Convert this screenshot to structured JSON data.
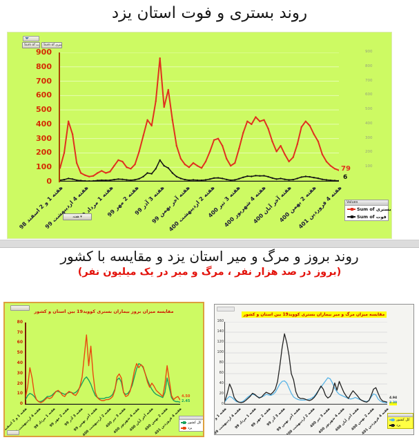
{
  "page": {
    "title1": "روند بستری و فوت استان یزد",
    "title2": "روند بروز و مرگ و میر استان یزد و مقایسه با کشور",
    "subtitle2": "(بروز در صد هزار نفر ، مرگ و میر در یک میلیون نفر)"
  },
  "colors": {
    "panel_green": "#cdfa63",
    "admissions_red": "#e0301e",
    "deaths_black": "#151515",
    "yazd_orange": "#e8470f",
    "country_green": "#19a15e",
    "yazd_dark": "#222222",
    "country_blue": "#58b4e6",
    "axis_label_red": "#d42b04",
    "title_red": "#e3120b",
    "highlight_yellow": "#ffff00"
  },
  "top_chart": {
    "field_buttons": [
      "Sum of فوت",
      "Sum of بستری"
    ],
    "axis_field_button": "هفته ▾",
    "legend": {
      "header": "Values",
      "items": [
        {
          "label": "Sum of بستری",
          "color": "#e0301e"
        },
        {
          "label": "Sum of فوت",
          "color": "#151515"
        }
      ]
    },
    "end_labels": {
      "admissions": "79",
      "deaths": "6"
    }
  },
  "bottom_left_chart": {
    "legend": {
      "items": [
        {
          "label": "کل کشور",
          "color": "#19a15e"
        },
        {
          "label": "یزد",
          "color": "#e8470f"
        }
      ]
    }
  },
  "bottom_right_chart": {
    "legend": {
      "items": [
        {
          "label": "کل کشور",
          "color": "#58b4e6"
        },
        {
          "label": "یزد",
          "color": "#222222"
        }
      ]
    }
  },
  "chart_data": [
    {
      "type": "line",
      "title": "روند بستری و فوت استان یزد",
      "xlabel": "هفته",
      "ylabel": "",
      "ylim": [
        0,
        900
      ],
      "yticks": [
        900,
        800,
        700,
        600,
        500,
        400,
        300,
        200,
        100,
        0
      ],
      "grid_color": "rgba(255,255,255,0.5)",
      "baseline_color": "#1a1a1a",
      "legend_position": "right-bottom",
      "categories": [
        "هفته 1 و 2 اسفند 98",
        "هفته 4 اردیبهشت 99",
        "هفته 1 مرداد 99",
        "هفته 2 مهر 99",
        "هفته 3 آذر 99",
        "هفته آخر بهمن 99",
        "هفته 2 اردیبهشت 400",
        "هفته 3 تیر 400",
        "هفته 4 شهریور 400",
        "هفته آخر آبان 400",
        "هفته 2 بهمن 400",
        "هفته 4 فروردین 401"
      ],
      "series": [
        {
          "name": "Sum of بستری",
          "slug": "admissions",
          "color": "#e0301e",
          "width": 2,
          "markers": true,
          "end_label": "79",
          "values": [
            95,
            200,
            420,
            330,
            130,
            60,
            45,
            35,
            40,
            60,
            75,
            60,
            70,
            110,
            150,
            140,
            100,
            90,
            120,
            210,
            320,
            430,
            390,
            560,
            860,
            520,
            640,
            430,
            250,
            160,
            120,
            100,
            130,
            110,
            95,
            140,
            210,
            290,
            300,
            250,
            160,
            110,
            130,
            230,
            340,
            420,
            400,
            450,
            420,
            430,
            370,
            280,
            210,
            250,
            190,
            140,
            170,
            260,
            380,
            420,
            390,
            330,
            280,
            190,
            140,
            110,
            90,
            79
          ]
        },
        {
          "name": "Sum of فوت",
          "slug": "deaths",
          "color": "#151515",
          "width": 1.6,
          "markers": true,
          "end_label": "6",
          "values": [
            10,
            14,
            22,
            18,
            10,
            7,
            5,
            4,
            5,
            8,
            10,
            9,
            10,
            14,
            18,
            16,
            12,
            10,
            13,
            20,
            35,
            60,
            55,
            90,
            150,
            110,
            95,
            60,
            35,
            22,
            14,
            10,
            12,
            10,
            9,
            12,
            18,
            25,
            26,
            22,
            15,
            10,
            12,
            20,
            30,
            38,
            36,
            42,
            40,
            41,
            34,
            25,
            18,
            22,
            16,
            12,
            14,
            22,
            32,
            36,
            33,
            28,
            23,
            16,
            12,
            9,
            7,
            6
          ]
        }
      ]
    },
    {
      "type": "line",
      "title": "مقایسه میزان بروز بیماران بستری کووید19 بین استان و کشور",
      "xlabel": "هفته",
      "ylabel": "",
      "ylim": [
        0,
        80
      ],
      "yticks": [
        80,
        70,
        60,
        50,
        40,
        30,
        20,
        10,
        0
      ],
      "grid_color": null,
      "baseline_color": "#1a1a1a",
      "legend_position": "right-bottom",
      "categories": [
        "هفته 1 و 2 اسفند 98",
        "هفته 4 اردیبهشت 99",
        "هفته 1 مرداد 99",
        "هفته 2 مهر 99",
        "هفته 3 آذر 99",
        "هفته آخر بهمن 99",
        "هفته 2 اردیبهشت 400",
        "هفته 3 تیر 400",
        "هفته 4 شهریور 400",
        "هفته آخر آبان 400",
        "هفته 2 بهمن 400",
        "هفته 4 فروردین 401"
      ],
      "series": [
        {
          "name": "کل کشور",
          "slug": "country",
          "color": "#19a15e",
          "width": 1.4,
          "markers": false,
          "end_label": "2.45",
          "values": [
            5,
            9,
            11,
            10,
            8,
            5,
            3,
            3,
            4,
            6,
            8,
            8,
            9,
            11,
            13,
            13,
            12,
            11,
            10,
            11,
            12,
            12,
            11,
            12,
            14,
            17,
            21,
            25,
            27,
            24,
            20,
            14,
            9,
            7,
            6,
            6,
            6,
            7,
            7,
            8,
            10,
            15,
            24,
            26,
            22,
            12,
            10,
            11,
            14,
            19,
            27,
            35,
            40,
            39,
            36,
            30,
            24,
            19,
            15,
            12,
            10,
            9,
            8,
            7,
            12,
            26,
            17,
            7,
            4,
            3,
            3,
            2.45
          ]
        },
        {
          "name": "یزد",
          "slug": "yazd",
          "color": "#e8470f",
          "width": 1.4,
          "markers": false,
          "end_label": "4.50",
          "values": [
            7,
            18,
            36,
            26,
            11,
            5,
            3,
            2,
            3,
            5,
            7,
            6,
            7,
            10,
            13,
            14,
            12,
            9,
            8,
            11,
            13,
            12,
            10,
            9,
            12,
            18,
            27,
            48,
            68,
            38,
            57,
            30,
            12,
            7,
            5,
            4,
            4,
            5,
            5,
            6,
            8,
            14,
            27,
            30,
            26,
            12,
            8,
            9,
            13,
            22,
            33,
            40,
            36,
            39,
            37,
            30,
            22,
            17,
            21,
            18,
            14,
            12,
            10,
            8,
            20,
            38,
            24,
            9,
            5,
            7,
            8,
            4.5
          ]
        }
      ]
    },
    {
      "type": "line",
      "title": "مقایسه میزان مرگ و میر بیماران بستری کووید19 بین استان و کشور",
      "xlabel": "هفته",
      "ylabel": "",
      "ylim": [
        0,
        160
      ],
      "yticks": [
        160,
        140,
        120,
        100,
        80,
        60,
        40,
        20,
        0
      ],
      "grid_color": "#dddddd",
      "baseline_color": "#555555",
      "legend_position": "right-bottom",
      "categories": [
        "هفته 1 و 2 اسفند 98",
        "هفته 4 اردیبهشت 99",
        "هفته 1 مرداد 99",
        "هفته 2 مهر 99",
        "هفته 3 آذر 99",
        "هفته آخر بهمن 99",
        "هفته 2 اردیبهشت 400",
        "هفته 3 تیر 400",
        "هفته 4 شهریور 400",
        "هفته آخر آبان 400",
        "هفته 2 بهمن 400",
        "هفته 4 فروردین 401"
      ],
      "series": [
        {
          "name": "کل کشور",
          "slug": "country",
          "color": "#58b4e6",
          "width": 1.3,
          "markers": false,
          "end_label": "3.30",
          "values": [
            6,
            12,
            16,
            14,
            10,
            6,
            5,
            5,
            7,
            11,
            15,
            18,
            20,
            19,
            16,
            14,
            15,
            17,
            20,
            19,
            18,
            20,
            24,
            32,
            40,
            45,
            46,
            42,
            32,
            22,
            15,
            12,
            10,
            9,
            9,
            9,
            10,
            11,
            13,
            16,
            22,
            28,
            34,
            40,
            46,
            52,
            50,
            42,
            32,
            25,
            20,
            18,
            16,
            14,
            12,
            11,
            12,
            14,
            12,
            10,
            8,
            7,
            6,
            8,
            15,
            21,
            19,
            11,
            7,
            5,
            4,
            3.3
          ]
        },
        {
          "name": "یزد",
          "slug": "yazd",
          "color": "#222222",
          "width": 1.3,
          "markers": false,
          "end_label": "4.94",
          "values": [
            8,
            22,
            40,
            30,
            14,
            8,
            5,
            4,
            5,
            8,
            12,
            16,
            22,
            20,
            16,
            13,
            15,
            20,
            24,
            22,
            20,
            24,
            30,
            45,
            75,
            110,
            137,
            120,
            95,
            60,
            48,
            25,
            15,
            12,
            12,
            11,
            9,
            8,
            10,
            14,
            20,
            28,
            36,
            30,
            18,
            13,
            16,
            25,
            42,
            28,
            45,
            34,
            24,
            17,
            12,
            20,
            27,
            22,
            17,
            11,
            8,
            6,
            5,
            8,
            18,
            30,
            33,
            22,
            12,
            7,
            6,
            4.9
          ]
        }
      ]
    }
  ]
}
